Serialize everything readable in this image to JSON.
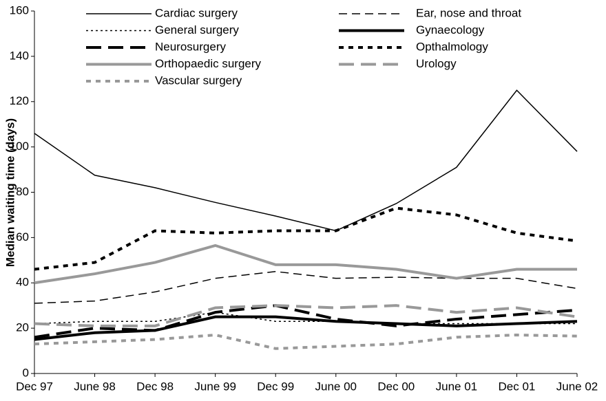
{
  "chart_data": {
    "type": "line",
    "y_label": "Median waiting time (days)",
    "categories": [
      "Dec 97",
      "June 98",
      "Dec 98",
      "June 99",
      "Dec 99",
      "June 00",
      "Dec 00",
      "June 01",
      "Dec 01",
      "June 02"
    ],
    "ylim": [
      0,
      160
    ],
    "yticks": [
      0,
      20,
      40,
      60,
      80,
      100,
      120,
      140,
      160
    ],
    "series": [
      {
        "name": "Cardiac surgery",
        "color": "#000000",
        "style": "solid",
        "weight": "thin",
        "values": [
          106,
          87.5,
          82,
          75.5,
          69.5,
          63,
          75,
          91,
          125,
          98
        ]
      },
      {
        "name": "Ear, nose and throat",
        "color": "#000000",
        "style": "dashed",
        "weight": "thin",
        "values": [
          31,
          32,
          36,
          42,
          45,
          42,
          42.5,
          42,
          42,
          37.5
        ]
      },
      {
        "name": "General surgery",
        "color": "#000000",
        "style": "dotted",
        "weight": "thin",
        "values": [
          22,
          23,
          23,
          27,
          23,
          23,
          22,
          22,
          22,
          22
        ]
      },
      {
        "name": "Gynaecology",
        "color": "#000000",
        "style": "solid",
        "weight": "thick",
        "values": [
          15,
          18,
          19,
          25,
          25,
          23,
          22,
          21,
          22,
          23
        ]
      },
      {
        "name": "Neurosurgery",
        "color": "#000000",
        "style": "dashed",
        "weight": "thick",
        "values": [
          16,
          20,
          19,
          27,
          30,
          24,
          21,
          24,
          26,
          28
        ]
      },
      {
        "name": "Opthalmology",
        "color": "#000000",
        "style": "dotted",
        "weight": "thick",
        "values": [
          46,
          49,
          63,
          62,
          63,
          63,
          73,
          70,
          62,
          58.5
        ]
      },
      {
        "name": "Orthopaedic surgery",
        "color": "#999999",
        "style": "solid",
        "weight": "thick",
        "values": [
          40,
          44,
          49,
          56.5,
          48,
          48,
          46,
          42,
          46,
          46
        ]
      },
      {
        "name": "Urology",
        "color": "#999999",
        "style": "dashed",
        "weight": "thick",
        "values": [
          22,
          21,
          21,
          29,
          30,
          29,
          30,
          27,
          29,
          25
        ]
      },
      {
        "name": "Vascular surgery",
        "color": "#999999",
        "style": "dotted",
        "weight": "thick",
        "values": [
          13,
          14,
          15,
          17,
          11,
          12,
          13,
          16,
          17,
          16.5
        ]
      }
    ]
  }
}
